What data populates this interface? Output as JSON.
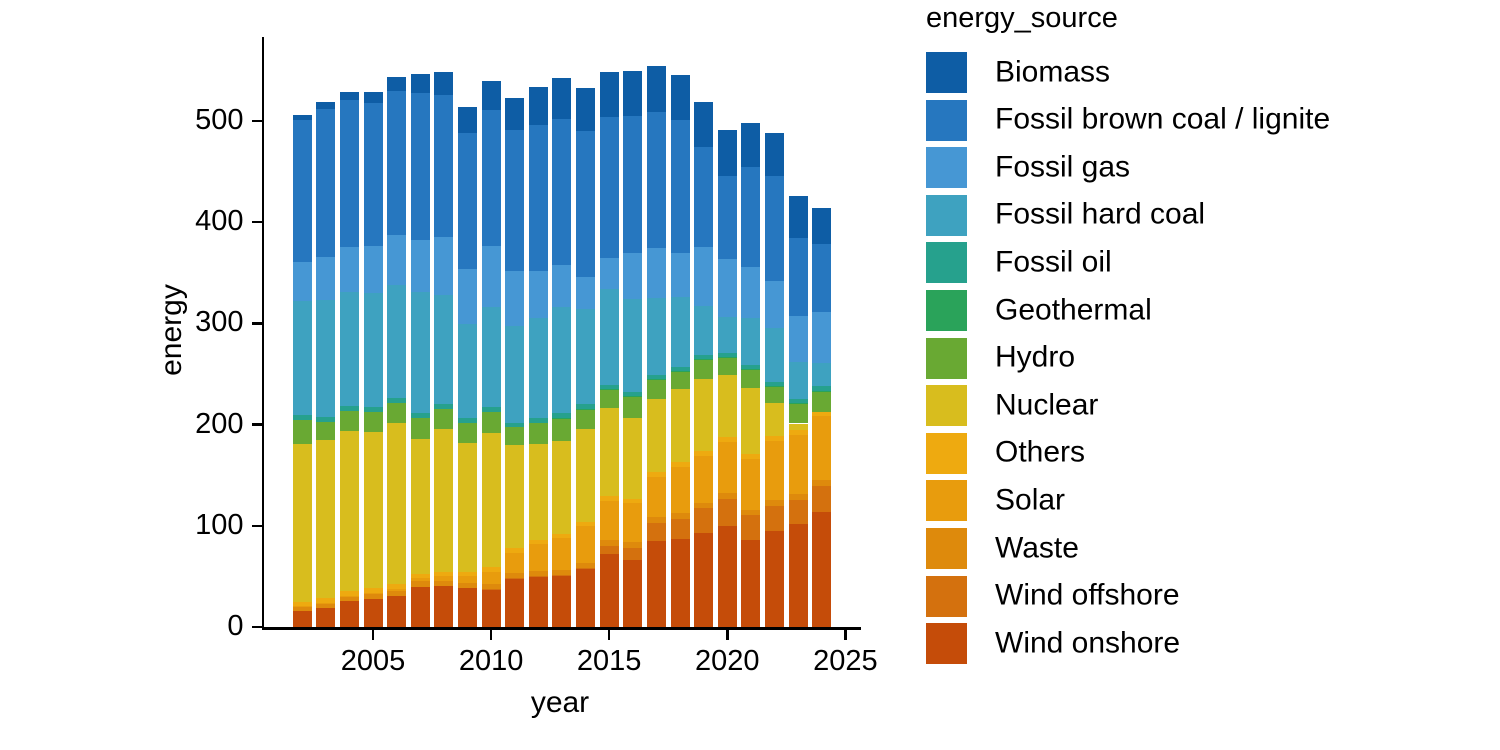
{
  "figure": {
    "xlabel": "year",
    "ylabel": "energy",
    "legend_title": "energy_source",
    "background_color": "#ffffff",
    "axis_color": "#000000"
  },
  "chart_data": {
    "type": "bar",
    "stacked": true,
    "stack_order": "first series drawn at top of stack, last series at bottom",
    "title": "",
    "xlabel": "year",
    "ylabel": "energy",
    "legend_title": "energy_source",
    "legend_position": "right",
    "grid": false,
    "x": [
      2002,
      2003,
      2004,
      2005,
      2006,
      2007,
      2008,
      2009,
      2010,
      2011,
      2012,
      2013,
      2014,
      2015,
      2016,
      2017,
      2018,
      2019,
      2020,
      2021,
      2022,
      2023,
      2024
    ],
    "x_ticks": [
      2005,
      2010,
      2015,
      2020,
      2025
    ],
    "y_ticks": [
      0,
      100,
      200,
      300,
      400,
      500
    ],
    "ylim": [
      0,
      580
    ],
    "series": [
      {
        "name": "Biomass",
        "color": "#0e5da5",
        "values": [
          4.9,
          6.6,
          8.3,
          10.9,
          14,
          19.4,
          22.7,
          25.5,
          28.1,
          31.9,
          38,
          40.1,
          42.2,
          44.6,
          45,
          45.5,
          44.7,
          44.4,
          44.8,
          43.4,
          42.8,
          42,
          36
        ]
      },
      {
        "name": "Fossil brown coal / lignite",
        "color": "#2677bf",
        "values": [
          140.6,
          146.6,
          145.4,
          141.3,
          142.3,
          145.1,
          140.4,
          134.3,
          134.9,
          138.8,
          143.5,
          145.1,
          144.3,
          139.4,
          135,
          134.1,
          131.4,
          99,
          81.9,
          99.1,
          103,
          76.5,
          67.5
        ]
      },
      {
        "name": "Fossil gas",
        "color": "#4697d4",
        "values": [
          38.9,
          42.3,
          44.3,
          46.9,
          48.7,
          51.1,
          57.5,
          54.6,
          59.9,
          54.8,
          46.4,
          40.9,
          32,
          30.5,
          45.1,
          49.2,
          43.5,
          58,
          57.5,
          50,
          46.9,
          45.9,
          50
        ]
      },
      {
        "name": "Fossil hard coal",
        "color": "#3ea2c0",
        "values": [
          111.9,
          115.4,
          112.2,
          112,
          112.3,
          119.5,
          107.4,
          92.9,
          98.9,
          95.6,
          99.3,
          105,
          94,
          94.6,
          92.4,
          75.9,
          68.8,
          48.7,
          35.6,
          46.4,
          53,
          36.2,
          23
        ]
      },
      {
        "name": "Fossil oil",
        "color": "#26a18d",
        "values": [
          5.3,
          5.7,
          5.2,
          5.2,
          5.1,
          5,
          5.2,
          4.9,
          4.8,
          4.6,
          4.6,
          4.4,
          4.3,
          4.2,
          4.2,
          4.1,
          4.1,
          4,
          3.7,
          3.9,
          4.4,
          4.4,
          4.2
        ]
      },
      {
        "name": "Geothermal",
        "color": "#2aa35a",
        "values": [
          0,
          0,
          0,
          0,
          0,
          0,
          0,
          0,
          0,
          0,
          0,
          0.1,
          0.1,
          0.1,
          0.2,
          0.2,
          0.2,
          0.2,
          0.2,
          0.2,
          0.2,
          0.2,
          0.2
        ]
      },
      {
        "name": "Hydro",
        "color": "#69a933",
        "values": [
          23.2,
          17.7,
          19.9,
          19.4,
          19.8,
          20.7,
          19.9,
          18.9,
          20.6,
          17.3,
          21.4,
          22.7,
          19.6,
          19,
          21,
          20.1,
          17.6,
          19.2,
          18.3,
          19.1,
          16.5,
          19.7,
          21
        ]
      },
      {
        "name": "Nuclear",
        "color": "#d8bd1e",
        "values": [
          156.3,
          156.4,
          158.2,
          154.6,
          158.7,
          133.2,
          140.9,
          127.7,
          133,
          102.2,
          94.1,
          92.1,
          91.8,
          86.8,
          80,
          72.2,
          72.1,
          71.1,
          60.9,
          65.4,
          32.8,
          6.7,
          0
        ]
      },
      {
        "name": "Others",
        "color": "#eeaa10",
        "values": [
          4.5,
          4.6,
          4.6,
          4.7,
          4.5,
          4.5,
          4.5,
          4.4,
          4.5,
          4.4,
          4.4,
          4.4,
          4.4,
          4.5,
          4.6,
          4.7,
          4.8,
          4.9,
          4.9,
          4.8,
          4.7,
          4.4,
          4.3
        ]
      },
      {
        "name": "Solar",
        "color": "#e89c0d",
        "values": [
          0.2,
          0.3,
          0.6,
          1.3,
          2.2,
          3.1,
          4.4,
          6.6,
          11.7,
          19.6,
          26.4,
          31,
          36.1,
          38.7,
          38.1,
          39.4,
          45.8,
          46.4,
          50.6,
          49.9,
          58.5,
          59,
          63
        ]
      },
      {
        "name": "Waste",
        "color": "#de8a0c",
        "values": [
          4.4,
          4.6,
          4.8,
          5.2,
          5.1,
          5.4,
          5.2,
          5,
          4.9,
          4.8,
          4.9,
          5,
          5.2,
          5.5,
          5.7,
          5.9,
          6,
          5.5,
          5.5,
          5.5,
          5.5,
          5.5,
          5.4
        ]
      },
      {
        "name": "Wind offshore",
        "color": "#d4710e",
        "values": [
          0,
          0,
          0,
          0,
          0,
          0,
          0,
          0,
          0.2,
          0.6,
          0.7,
          0.9,
          1.4,
          8.2,
          12.1,
          17.4,
          19.3,
          24.4,
          27.3,
          24.4,
          24.7,
          23.5,
          25.7
        ]
      },
      {
        "name": "Wind onshore",
        "color": "#c54c09",
        "values": [
          15.9,
          18.7,
          25.5,
          27.2,
          30.7,
          39.7,
          40.6,
          38.6,
          37.8,
          48.3,
          49.9,
          50.8,
          57,
          72.3,
          66.3,
          85.3,
          87.4,
          93,
          99.5,
          86,
          95,
          102,
          114
        ]
      }
    ]
  }
}
